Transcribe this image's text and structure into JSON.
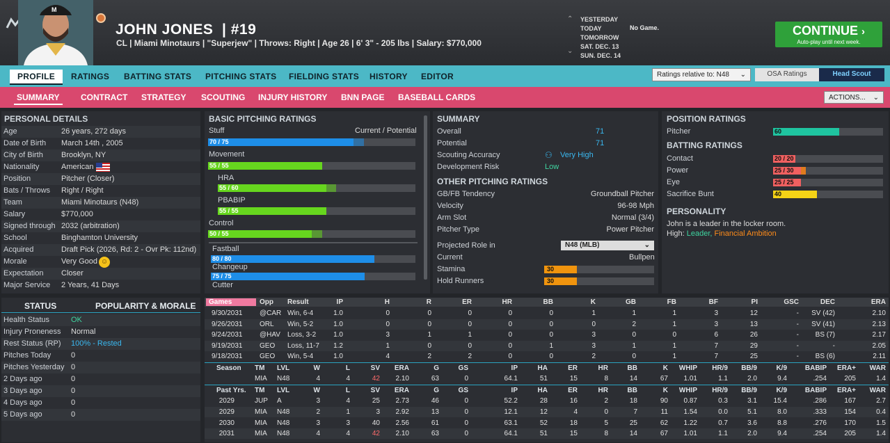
{
  "header": {
    "name": "JOHN JONES",
    "number": "| #19",
    "info": "CL | Miami Minotaurs  | \"Superjew\" | Throws: Right | Age 26 | 6' 3\" - 205 lbs | Salary: $770,000"
  },
  "schedule": {
    "days": [
      "YESTERDAY",
      "TODAY",
      "TOMORROW",
      "SAT. DEC. 13",
      "SUN. DEC. 14"
    ],
    "today_note": "No Game."
  },
  "continue": {
    "label": "CONTINUE",
    "sub": "Auto-play until next week."
  },
  "nav1": [
    "PROFILE",
    "RATINGS",
    "BATTING STATS",
    "PITCHING STATS",
    "FIELDING STATS",
    "HISTORY",
    "EDITOR"
  ],
  "ratings_relative": "Ratings relative to: N48",
  "osa": "OSA Ratings",
  "head_scout": "Head Scout",
  "nav2": [
    "SUMMARY",
    "CONTRACT",
    "STRATEGY",
    "SCOUTING",
    "INJURY HISTORY",
    "BNN PAGE",
    "BASEBALL CARDS"
  ],
  "actions": "ACTIONS...",
  "personal": {
    "title": "PERSONAL DETAILS",
    "rows": [
      [
        "Age",
        "26 years, 272 days"
      ],
      [
        "Date of Birth",
        "March 14th , 2005"
      ],
      [
        "City of Birth",
        "Brooklyn, NY"
      ],
      [
        "Nationality",
        "American"
      ],
      [
        "Position",
        "Pitcher (Closer)"
      ],
      [
        "Bats / Throws",
        "Right / Right"
      ],
      [
        "Team",
        "Miami Minotaurs (N48)"
      ],
      [
        "Salary",
        "$770,000"
      ],
      [
        "Signed through",
        "2032 (arbitration)"
      ],
      [
        "School",
        "Binghamton University"
      ],
      [
        "Acquired",
        "Draft Pick (2026, Rd: 2 - Ovr Pk: 112nd)"
      ],
      [
        "Morale",
        "Very Good"
      ],
      [
        "Expectation",
        "Closer"
      ],
      [
        "Major Service",
        "2 Years, 41 Days"
      ]
    ]
  },
  "status": {
    "title": "STATUS",
    "title2": "POPULARITY & MORALE",
    "rows": [
      [
        "Health Status",
        "OK"
      ],
      [
        "Injury Proneness",
        "Normal"
      ],
      [
        "Rest Status (RP)",
        "100% - Rested"
      ],
      [
        "Pitches Today",
        "0"
      ],
      [
        "Pitches Yesterday",
        "0"
      ],
      [
        "2 Days ago",
        "0"
      ],
      [
        "3 Days ago",
        "0"
      ],
      [
        "4 Days ago",
        "0"
      ],
      [
        "5 Days ago",
        "0"
      ]
    ]
  },
  "basic": {
    "title": "BASIC PITCHING RATINGS",
    "curpot": "Current / Potential",
    "colors": {
      "blue": "#1e8ee8",
      "green": "#66d61e"
    },
    "ratings": [
      {
        "name": "Stuff",
        "label": "70 / 75",
        "cur": 70,
        "pot": 75,
        "color": "blue"
      },
      {
        "name": "Movement",
        "label": "55 / 55",
        "cur": 55,
        "pot": 55,
        "color": "green"
      },
      {
        "name": "HRA",
        "label": "55 / 60",
        "cur": 55,
        "pot": 60,
        "color": "green",
        "indent": true
      },
      {
        "name": "PBABIP",
        "label": "55 / 55",
        "cur": 55,
        "pot": 55,
        "color": "green",
        "indent": true
      },
      {
        "name": "Control",
        "label": "50 / 55",
        "cur": 50,
        "pot": 55,
        "color": "green"
      }
    ],
    "pitches": [
      {
        "name": "Fastball",
        "label": "80 / 80",
        "cur": 80,
        "pot": 80
      },
      {
        "name": "Changeup",
        "label": "75 / 75",
        "cur": 75,
        "pot": 75
      },
      {
        "name": "Cutter"
      }
    ]
  },
  "summary": {
    "title": "SUMMARY",
    "rows": [
      [
        "Overall",
        "71"
      ],
      [
        "Potential",
        "71"
      ],
      [
        "Scouting Accuracy",
        "Very High"
      ],
      [
        "Development Risk",
        "Low"
      ]
    ],
    "other_title": "OTHER PITCHING RATINGS",
    "other": [
      [
        "GB/FB Tendency",
        "Groundball Pitcher"
      ],
      [
        "Velocity",
        "96-98 Mph"
      ],
      [
        "Arm Slot",
        "Normal (3/4)"
      ],
      [
        "Pitcher Type",
        "Power Pitcher"
      ]
    ],
    "proj_label": "Projected Role in",
    "proj_value": "N48 (MLB)",
    "current_label": "Current",
    "current_value": "Bullpen",
    "stamina": {
      "label": "Stamina",
      "value": 30
    },
    "hold": {
      "label": "Hold Runners",
      "value": 30
    }
  },
  "position": {
    "title": "POSITION RATINGS",
    "pitcher": {
      "label": "Pitcher",
      "value": 60
    },
    "batting_title": "BATTING RATINGS",
    "batting": [
      {
        "name": "Contact",
        "label": "20 / 20",
        "cur": 20,
        "pot": 20
      },
      {
        "name": "Power",
        "label": "25 / 30",
        "cur": 25,
        "pot": 30
      },
      {
        "name": "Eye",
        "label": "25 / 25",
        "cur": 25,
        "pot": 25
      },
      {
        "name": "Sacrifice Bunt",
        "label": "40",
        "cur": 40,
        "pot": 40
      }
    ],
    "personality_title": "PERSONALITY",
    "personality_line": "John is a leader in the locker room.",
    "high_label": "High:",
    "high_a": "Leader,",
    "high_b": "Financial Ambition"
  },
  "games": {
    "header": [
      "Games",
      "Opp",
      "Result",
      "IP",
      "H",
      "R",
      "ER",
      "HR",
      "BB",
      "K",
      "GB",
      "FB",
      "BF",
      "PI",
      "GSC",
      "DEC",
      "ERA"
    ],
    "rows": [
      [
        "9/30/2031",
        "@CAR",
        "Win, 6-4",
        "1.0",
        "0",
        "0",
        "0",
        "0",
        "0",
        "1",
        "1",
        "1",
        "3",
        "12",
        "-",
        "SV (42)",
        "2.10"
      ],
      [
        "9/26/2031",
        "ORL",
        "Win, 5-2",
        "1.0",
        "0",
        "0",
        "0",
        "0",
        "0",
        "0",
        "2",
        "1",
        "3",
        "13",
        "-",
        "SV (41)",
        "2.13"
      ],
      [
        "9/24/2031",
        "@HAV",
        "Loss, 3-2",
        "1.0",
        "3",
        "1",
        "1",
        "0",
        "0",
        "3",
        "0",
        "0",
        "6",
        "26",
        "-",
        "BS (7)",
        "2.17"
      ],
      [
        "9/19/2031",
        "GEO",
        "Loss, 11-7",
        "1.2",
        "1",
        "0",
        "0",
        "0",
        "1",
        "3",
        "1",
        "1",
        "7",
        "29",
        "-",
        "-",
        "2.05"
      ],
      [
        "9/18/2031",
        "GEO",
        "Win, 5-4",
        "1.0",
        "4",
        "2",
        "2",
        "0",
        "0",
        "2",
        "0",
        "1",
        "7",
        "25",
        "-",
        "BS (6)",
        "2.11"
      ]
    ]
  },
  "season": {
    "header": [
      "Season",
      "TM",
      "LVL",
      "W",
      "L",
      "SV",
      "ERA",
      "G",
      "GS",
      "IP",
      "HA",
      "ER",
      "HR",
      "BB",
      "K",
      "WHIP",
      "HR/9",
      "BB/9",
      "K/9",
      "BABIP",
      "ERA+",
      "WAR"
    ],
    "row": [
      "",
      "MIA",
      "N48",
      "4",
      "4",
      "42",
      "2.10",
      "63",
      "0",
      "64.1",
      "51",
      "15",
      "8",
      "14",
      "67",
      "1.01",
      "1.1",
      "2.0",
      "9.4",
      ".254",
      "205",
      "1.4"
    ]
  },
  "past": {
    "header": [
      "Past Yrs.",
      "TM",
      "LVL",
      "W",
      "L",
      "SV",
      "ERA",
      "G",
      "GS",
      "IP",
      "HA",
      "ER",
      "HR",
      "BB",
      "K",
      "WHIP",
      "HR/9",
      "BB/9",
      "K/9",
      "BABIP",
      "ERA+",
      "WAR"
    ],
    "rows": [
      [
        "2029",
        "JUP",
        "A",
        "3",
        "4",
        "25",
        "2.73",
        "46",
        "0",
        "52.2",
        "28",
        "16",
        "2",
        "18",
        "90",
        "0.87",
        "0.3",
        "3.1",
        "15.4",
        ".286",
        "167",
        "2.7"
      ],
      [
        "2029",
        "MIA",
        "N48",
        "2",
        "1",
        "3",
        "2.92",
        "13",
        "0",
        "12.1",
        "12",
        "4",
        "0",
        "7",
        "11",
        "1.54",
        "0.0",
        "5.1",
        "8.0",
        ".333",
        "154",
        "0.4"
      ],
      [
        "2030",
        "MIA",
        "N48",
        "3",
        "3",
        "40",
        "2.56",
        "61",
        "0",
        "63.1",
        "52",
        "18",
        "5",
        "25",
        "62",
        "1.22",
        "0.7",
        "3.6",
        "8.8",
        ".276",
        "170",
        "1.5"
      ],
      [
        "2031",
        "MIA",
        "N48",
        "4",
        "4",
        "42",
        "2.10",
        "63",
        "0",
        "64.1",
        "51",
        "15",
        "8",
        "14",
        "67",
        "1.01",
        "1.1",
        "2.0",
        "9.4",
        ".254",
        "205",
        "1.4"
      ]
    ]
  }
}
